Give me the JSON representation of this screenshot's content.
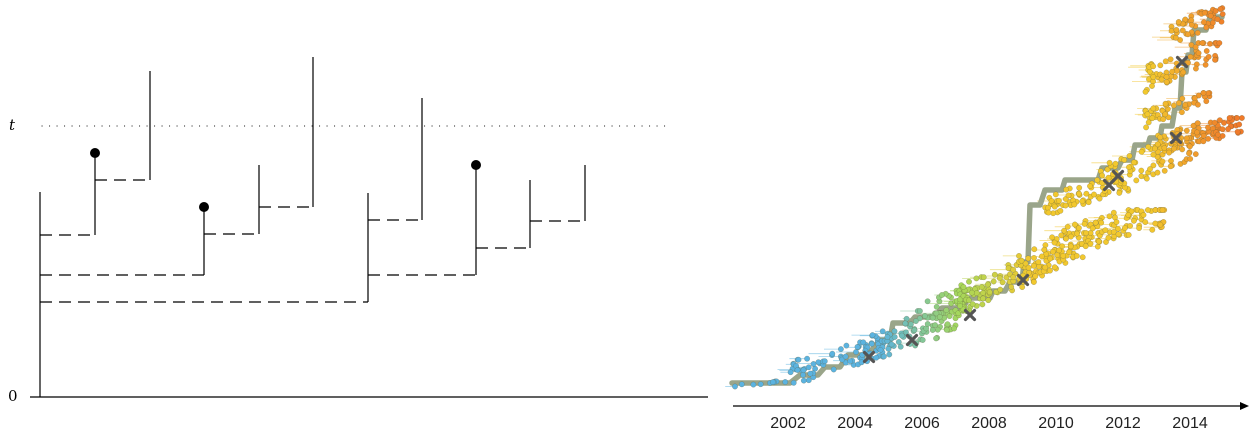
{
  "left_diagram": {
    "t_label": "t",
    "zero_label": "0"
  },
  "right_tree": {
    "years": [
      "2002",
      "2004",
      "2006",
      "2008",
      "2010",
      "2012",
      "2014"
    ],
    "colors": {
      "trunk": "#9aa58a",
      "early": "#5bb3e0",
      "mid": "#a6d85a",
      "late": "#f2c82e",
      "latest": "#f07a2a",
      "marker": "#555555"
    }
  }
}
